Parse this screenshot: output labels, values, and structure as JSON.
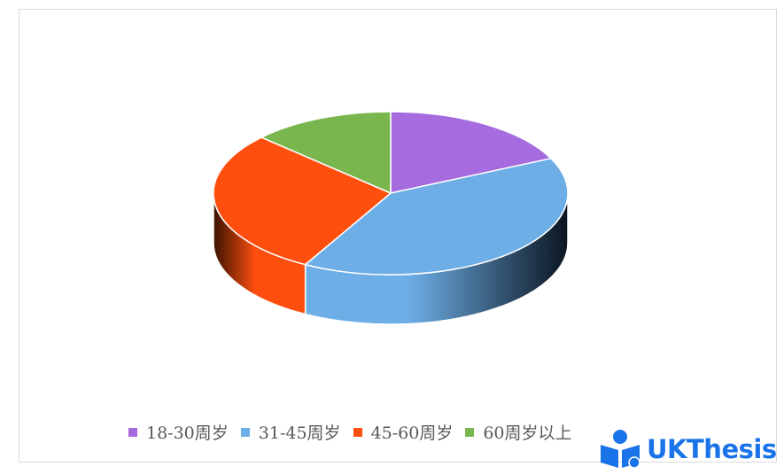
{
  "chart_data": {
    "type": "pie",
    "style": "3d",
    "categories": [
      "18-30周岁",
      "31-45周岁",
      "45-60周岁",
      "60周岁以上"
    ],
    "values": [
      18,
      40,
      29,
      13
    ],
    "colors": [
      "#a56bdf",
      "#6daee6",
      "#ff4f0f",
      "#7ab64e"
    ],
    "legend_position": "bottom"
  },
  "watermark": "UKThesis"
}
